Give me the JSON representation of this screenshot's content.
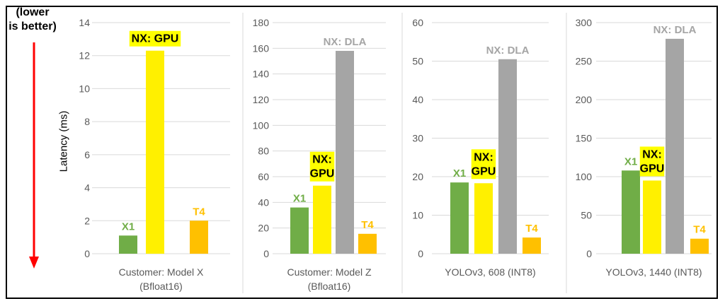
{
  "note": {
    "line1": "(lower",
    "line2": "is better)"
  },
  "ylabel": "Latency (ms)",
  "colors": {
    "X1": "#70AD47",
    "NX: GPU": "#FFF000",
    "NX: DLA": "#A5A5A5",
    "T4": "#FFC000",
    "highlight": "#FFFF00",
    "arrow": "#FF0000",
    "grid": "#D9D9D9",
    "axisText": "#595959"
  },
  "chart_data": [
    {
      "type": "bar",
      "categories": [
        "X1",
        "NX: GPU",
        "T4"
      ],
      "values": [
        1.1,
        12.3,
        2.0
      ],
      "xlabel": "Customer: Model X\n(Bfloat16)",
      "ylim": [
        0,
        14
      ],
      "yticks": [
        0,
        2,
        4,
        6,
        8,
        10,
        12,
        14
      ],
      "grid": true,
      "bar_labels": [
        "X1",
        "NX: GPU",
        "T4"
      ]
    },
    {
      "type": "bar",
      "categories": [
        "X1",
        "NX: GPU",
        "NX: DLA",
        "T4"
      ],
      "values": [
        36,
        53,
        158,
        15.5
      ],
      "xlabel": "Customer: Model Z\n(Bfloat16)",
      "ylim": [
        0,
        180
      ],
      "yticks": [
        0,
        20,
        40,
        60,
        80,
        100,
        120,
        140,
        160,
        180
      ],
      "grid": true,
      "bar_labels": [
        "X1",
        "NX:\nGPU",
        "NX: DLA",
        "T4"
      ]
    },
    {
      "type": "bar",
      "categories": [
        "X1",
        "NX: GPU",
        "NX: DLA",
        "T4"
      ],
      "values": [
        18.5,
        18.3,
        50.5,
        4.2
      ],
      "xlabel": "YOLOv3, 608 (INT8)",
      "ylim": [
        0,
        60
      ],
      "yticks": [
        0,
        10,
        20,
        30,
        40,
        50,
        60
      ],
      "grid": true,
      "bar_labels": [
        "X1",
        "NX:\nGPU",
        "NX: DLA",
        "T4"
      ]
    },
    {
      "type": "bar",
      "categories": [
        "X1",
        "NX: GPU",
        "NX: DLA",
        "T4"
      ],
      "values": [
        108,
        95,
        279,
        19.5
      ],
      "xlabel": "YOLOv3, 1440 (INT8)",
      "ylim": [
        0,
        300
      ],
      "yticks": [
        0,
        50,
        100,
        150,
        200,
        250,
        300
      ],
      "grid": true,
      "bar_labels": [
        "X1",
        "NX:\nGPU",
        "NX: DLA",
        "T4"
      ]
    }
  ]
}
